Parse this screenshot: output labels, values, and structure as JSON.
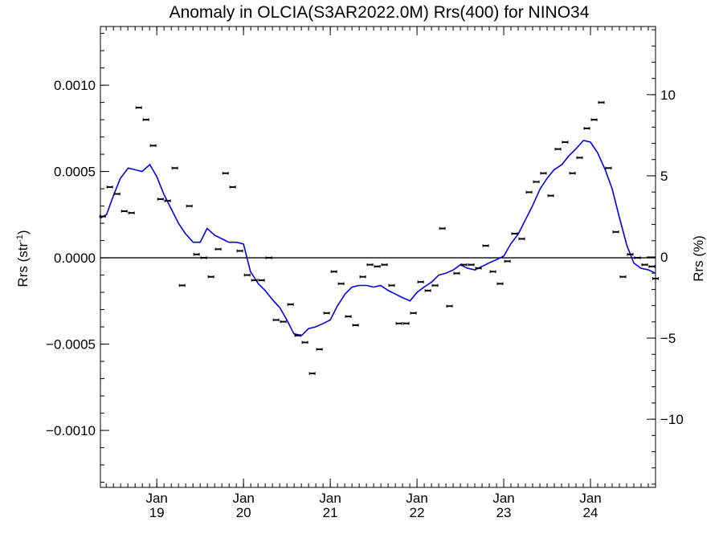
{
  "chart_data": {
    "type": "scatter",
    "title": "Anomaly in OLCIA(S3AR2022.0M) Rrs(400) for NINO34",
    "ylabel": "Rrs (str",
    "ylabel_sup": "-1",
    "ylabel_close": ")",
    "y2label": "Rrs (%)",
    "xlim": [
      2018.35,
      2024.75
    ],
    "ylim": [
      -0.00133,
      0.00134
    ],
    "y2lim": [
      -14.2,
      14.2
    ],
    "grid": false,
    "zero_line": true,
    "x_ticks": [
      {
        "x": 2019,
        "month": "Jan",
        "year": "19"
      },
      {
        "x": 2020,
        "month": "Jan",
        "year": "20"
      },
      {
        "x": 2021,
        "month": "Jan",
        "year": "21"
      },
      {
        "x": 2022,
        "month": "Jan",
        "year": "22"
      },
      {
        "x": 2023,
        "month": "Jan",
        "year": "23"
      },
      {
        "x": 2024,
        "month": "Jan",
        "year": "24"
      }
    ],
    "y_ticks": [
      {
        "v": 0.001,
        "label": "0.0010"
      },
      {
        "v": 0.0005,
        "label": "0.0005"
      },
      {
        "v": 0.0,
        "label": "0.0000"
      },
      {
        "v": -0.0005,
        "label": "−0.0005"
      },
      {
        "v": -0.001,
        "label": "−0.0010"
      }
    ],
    "y2_ticks": [
      {
        "v": 10,
        "label": "10"
      },
      {
        "v": 5,
        "label": "5"
      },
      {
        "v": 0,
        "label": "0"
      },
      {
        "v": -5,
        "label": "−5"
      },
      {
        "v": -10,
        "label": "−10"
      }
    ],
    "series": [
      {
        "kind": "points_with_errorbars",
        "color": "#000000",
        "points": [
          [
            2018.375,
            0.00024
          ],
          [
            2018.458,
            0.00041
          ],
          [
            2018.542,
            0.00037
          ],
          [
            2018.625,
            0.00027
          ],
          [
            2018.708,
            0.00026
          ],
          [
            2018.792,
            0.00087
          ],
          [
            2018.875,
            0.0008
          ],
          [
            2018.958,
            0.00065
          ],
          [
            2019.042,
            0.00034
          ],
          [
            2019.125,
            0.00033
          ],
          [
            2019.208,
            0.00052
          ],
          [
            2019.292,
            -0.00016
          ],
          [
            2019.375,
            0.0003
          ],
          [
            2019.458,
            2e-05
          ],
          [
            2019.542,
            0.0
          ],
          [
            2019.625,
            -0.00011
          ],
          [
            2019.708,
            5e-05
          ],
          [
            2019.792,
            0.00049
          ],
          [
            2019.875,
            0.00041
          ],
          [
            2019.958,
            4e-05
          ],
          [
            2020.042,
            -0.0001
          ],
          [
            2020.125,
            -0.00013
          ],
          [
            2020.208,
            -0.00013
          ],
          [
            2020.292,
            0.0
          ],
          [
            2020.375,
            -0.00036
          ],
          [
            2020.458,
            -0.00037
          ],
          [
            2020.542,
            -0.00027
          ],
          [
            2020.625,
            -0.00045
          ],
          [
            2020.708,
            -0.00049
          ],
          [
            2020.792,
            -0.00067
          ],
          [
            2020.875,
            -0.00053
          ],
          [
            2020.958,
            -0.00032
          ],
          [
            2021.042,
            -8e-05
          ],
          [
            2021.125,
            -0.00015
          ],
          [
            2021.208,
            -0.00034
          ],
          [
            2021.292,
            -0.00039
          ],
          [
            2021.375,
            -0.00011
          ],
          [
            2021.458,
            -4e-05
          ],
          [
            2021.542,
            -5e-05
          ],
          [
            2021.625,
            -4e-05
          ],
          [
            2021.708,
            -0.00016
          ],
          [
            2021.792,
            -0.00038
          ],
          [
            2021.875,
            -0.00038
          ],
          [
            2021.958,
            -0.00032
          ],
          [
            2022.042,
            -0.00014
          ],
          [
            2022.125,
            -0.00019
          ],
          [
            2022.208,
            -0.00016
          ],
          [
            2022.292,
            0.00017
          ],
          [
            2022.375,
            -0.00028
          ],
          [
            2022.458,
            -9e-05
          ],
          [
            2022.542,
            -4e-05
          ],
          [
            2022.625,
            -4e-05
          ],
          [
            2022.708,
            -6e-05
          ],
          [
            2022.792,
            7e-05
          ],
          [
            2022.875,
            -8e-05
          ],
          [
            2022.958,
            -0.00015
          ],
          [
            2023.042,
            -2e-05
          ],
          [
            2023.125,
            0.00014
          ],
          [
            2023.208,
            0.00011
          ],
          [
            2023.292,
            0.00038
          ],
          [
            2023.375,
            0.00044
          ],
          [
            2023.458,
            0.00049
          ],
          [
            2023.542,
            0.00036
          ],
          [
            2023.625,
            0.00063
          ],
          [
            2023.708,
            0.00067
          ],
          [
            2023.792,
            0.00049
          ],
          [
            2023.875,
            0.00058
          ],
          [
            2023.958,
            0.00075
          ],
          [
            2024.042,
            0.0008
          ],
          [
            2024.125,
            0.0009
          ],
          [
            2024.208,
            0.00052
          ],
          [
            2024.292,
            0.00015
          ],
          [
            2024.375,
            -0.00011
          ],
          [
            2024.458,
            2e-05
          ],
          [
            2024.542,
            0.0
          ],
          [
            2024.625,
            -4e-05
          ],
          [
            2024.708,
            -5e-05
          ],
          [
            2024.75,
            -0.00012
          ]
        ]
      },
      {
        "kind": "smoothed_line",
        "color": "#0000ee",
        "points": [
          [
            2018.35,
            0.00023
          ],
          [
            2018.42,
            0.00025
          ],
          [
            2018.5,
            0.00036
          ],
          [
            2018.58,
            0.00046
          ],
          [
            2018.67,
            0.00052
          ],
          [
            2018.75,
            0.00051
          ],
          [
            2018.83,
            0.0005
          ],
          [
            2018.92,
            0.00054
          ],
          [
            2019.0,
            0.00047
          ],
          [
            2019.08,
            0.00037
          ],
          [
            2019.17,
            0.00028
          ],
          [
            2019.25,
            0.0002
          ],
          [
            2019.33,
            0.00014
          ],
          [
            2019.42,
            9e-05
          ],
          [
            2019.5,
            9e-05
          ],
          [
            2019.58,
            0.00017
          ],
          [
            2019.67,
            0.00013
          ],
          [
            2019.75,
            0.00011
          ],
          [
            2019.83,
            9e-05
          ],
          [
            2019.92,
            9e-05
          ],
          [
            2020.0,
            8e-05
          ],
          [
            2020.08,
            -8e-05
          ],
          [
            2020.17,
            -0.00015
          ],
          [
            2020.25,
            -0.00019
          ],
          [
            2020.33,
            -0.00024
          ],
          [
            2020.42,
            -0.00029
          ],
          [
            2020.5,
            -0.00036
          ],
          [
            2020.58,
            -0.00044
          ],
          [
            2020.67,
            -0.00045
          ],
          [
            2020.75,
            -0.00041
          ],
          [
            2020.83,
            -0.0004
          ],
          [
            2020.92,
            -0.00038
          ],
          [
            2021.0,
            -0.00036
          ],
          [
            2021.08,
            -0.00028
          ],
          [
            2021.17,
            -0.00021
          ],
          [
            2021.25,
            -0.00017
          ],
          [
            2021.33,
            -0.00016
          ],
          [
            2021.42,
            -0.00016
          ],
          [
            2021.5,
            -0.00017
          ],
          [
            2021.58,
            -0.00016
          ],
          [
            2021.67,
            -0.00019
          ],
          [
            2021.75,
            -0.00021
          ],
          [
            2021.83,
            -0.00023
          ],
          [
            2021.92,
            -0.00025
          ],
          [
            2022.0,
            -0.0002
          ],
          [
            2022.08,
            -0.00017
          ],
          [
            2022.17,
            -0.00014
          ],
          [
            2022.25,
            -0.0001
          ],
          [
            2022.33,
            -9e-05
          ],
          [
            2022.42,
            -7e-05
          ],
          [
            2022.5,
            -4e-05
          ],
          [
            2022.58,
            -6e-05
          ],
          [
            2022.67,
            -7e-05
          ],
          [
            2022.75,
            -5e-05
          ],
          [
            2022.83,
            -3e-05
          ],
          [
            2022.92,
            -1e-05
          ],
          [
            2023.0,
            1e-05
          ],
          [
            2023.08,
            8e-05
          ],
          [
            2023.17,
            0.00014
          ],
          [
            2023.25,
            0.00022
          ],
          [
            2023.33,
            0.0003
          ],
          [
            2023.42,
            0.0004
          ],
          [
            2023.5,
            0.00046
          ],
          [
            2023.58,
            0.00051
          ],
          [
            2023.67,
            0.00054
          ],
          [
            2023.75,
            0.00059
          ],
          [
            2023.83,
            0.00063
          ],
          [
            2023.92,
            0.00068
          ],
          [
            2024.0,
            0.00067
          ],
          [
            2024.08,
            0.00061
          ],
          [
            2024.17,
            0.00051
          ],
          [
            2024.25,
            0.0004
          ],
          [
            2024.33,
            0.00024
          ],
          [
            2024.42,
            7e-05
          ],
          [
            2024.5,
            -3e-05
          ],
          [
            2024.58,
            -6e-05
          ],
          [
            2024.67,
            -7e-05
          ],
          [
            2024.75,
            -9e-05
          ]
        ]
      }
    ]
  }
}
